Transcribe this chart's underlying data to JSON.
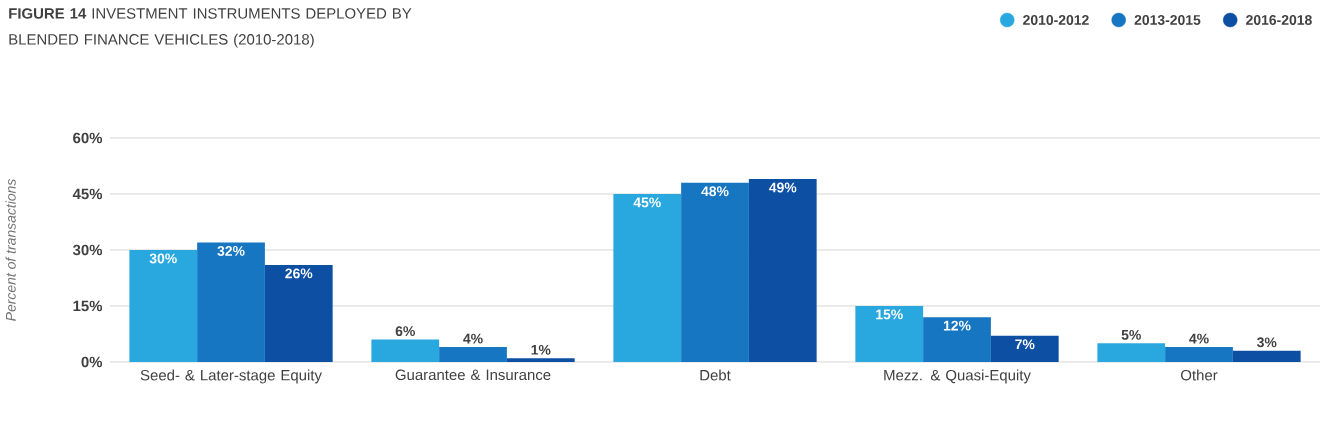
{
  "chart_data": {
    "type": "bar",
    "title": "**FIGURE 14** INVESTMENT INSTRUMENTS DEPLOYED BY BLENDED FINANCE VEHICLES (2010-2018)",
    "ylabel": "Percent of transactions",
    "categories": [
      "Seed- & Later-stage Equity",
      "Guarantee & Insurance",
      "Debt",
      "Mezz. & Quasi-Equity",
      "Other"
    ],
    "series": [
      {
        "name": "2010-2012",
        "color": "#29a8e0",
        "values": [
          30,
          6,
          45,
          15,
          5
        ],
        "value_labels": [
          "30%",
          "6%",
          "45%",
          "15%",
          "5%"
        ]
      },
      {
        "name": "2013-2015",
        "color": "#1676c1",
        "values": [
          32,
          4,
          48,
          12,
          4
        ],
        "value_labels": [
          "32%",
          "4%",
          "48%",
          "12%",
          "4%"
        ]
      },
      {
        "name": "2016-2018",
        "color": "#0d4fa3",
        "values": [
          26,
          1,
          49,
          7,
          3
        ],
        "value_labels": [
          "26%",
          "1%",
          "49%",
          "7%",
          "3%"
        ]
      }
    ],
    "ylim": [
      0,
      60
    ],
    "yticks": [
      {
        "value": 0,
        "label": "0%"
      },
      {
        "value": 15,
        "label": "15%"
      },
      {
        "value": 30,
        "label": "30%"
      },
      {
        "value": 45,
        "label": "45%"
      },
      {
        "value": 60,
        "label": "60%"
      }
    ],
    "grid": "y",
    "legend": "top right",
    "marker": "circle"
  }
}
